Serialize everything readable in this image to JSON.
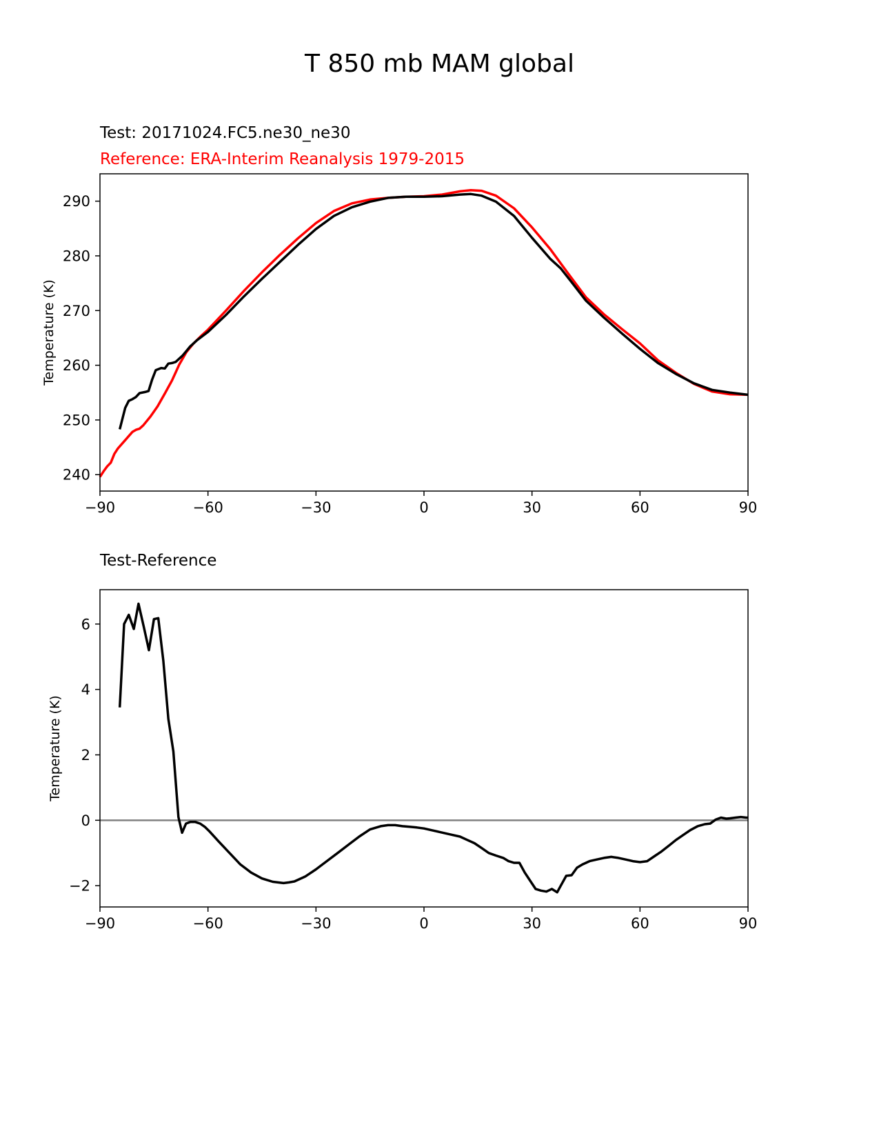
{
  "figure": {
    "title": "T 850 mb MAM global"
  },
  "chart_data": [
    {
      "type": "line",
      "test_label": "Test: 20171024.FC5.ne30_ne30",
      "reference_label": "Reference: ERA-Interim Reanalysis 1979-2015",
      "xlabel": "",
      "ylabel": "Temperature (K)",
      "xlim": [
        -90,
        90
      ],
      "ylim": [
        237,
        295
      ],
      "xticks": [
        -90,
        -60,
        -30,
        0,
        30,
        60,
        90
      ],
      "xtick_labels": [
        "−90",
        "−60",
        "−30",
        "0",
        "30",
        "60",
        "90"
      ],
      "yticks": [
        240,
        250,
        260,
        270,
        280,
        290
      ],
      "ytick_labels": [
        "240",
        "250",
        "260",
        "270",
        "280",
        "290"
      ],
      "series": [
        {
          "name": "Reference",
          "color": "#ff0000",
          "x": [
            -90,
            -89,
            -88,
            -87,
            -86,
            -85,
            -83,
            -81,
            -80,
            -79,
            -78,
            -76,
            -74,
            -72,
            -70,
            -68,
            -66,
            -64,
            -62,
            -60,
            -55,
            -50,
            -45,
            -40,
            -35,
            -30,
            -25,
            -20,
            -15,
            -10,
            -5,
            0,
            5,
            10,
            13,
            16,
            20,
            25,
            30,
            35,
            40,
            45,
            50,
            55,
            60,
            65,
            70,
            75,
            80,
            85,
            90
          ],
          "y": [
            239.6,
            240.6,
            241.5,
            242.2,
            243.8,
            244.8,
            246.3,
            247.8,
            248.2,
            248.4,
            249.0,
            250.6,
            252.5,
            254.8,
            257.2,
            260.1,
            262.4,
            264.0,
            265.3,
            266.5,
            270.0,
            273.6,
            277.0,
            280.2,
            283.2,
            286.0,
            288.2,
            289.6,
            290.3,
            290.6,
            290.8,
            290.9,
            291.2,
            291.8,
            292.0,
            291.9,
            291.0,
            288.7,
            285.2,
            281.3,
            276.8,
            272.4,
            269.3,
            266.6,
            264.0,
            260.9,
            258.6,
            256.6,
            255.2,
            254.7,
            254.6
          ]
        },
        {
          "name": "Test",
          "color": "#000000",
          "x": [
            -84.5,
            -83,
            -82,
            -81,
            -80,
            -79,
            -77.5,
            -76.5,
            -75.5,
            -74.5,
            -73,
            -72,
            -71,
            -70,
            -69,
            -67,
            -65,
            -63,
            -60,
            -55,
            -50,
            -45,
            -40,
            -35,
            -30,
            -25,
            -20,
            -15,
            -10,
            -5,
            0,
            5,
            10,
            13,
            16,
            20,
            25,
            30,
            35,
            38,
            41,
            45,
            50,
            55,
            60,
            65,
            70,
            75,
            80,
            85,
            90
          ],
          "y": [
            248.3,
            252.2,
            253.5,
            253.8,
            254.2,
            254.9,
            255.1,
            255.3,
            257.4,
            259.1,
            259.5,
            259.4,
            260.3,
            260.4,
            260.6,
            261.8,
            263.4,
            264.6,
            266.1,
            269.2,
            272.6,
            275.8,
            278.9,
            282.0,
            284.9,
            287.3,
            288.9,
            289.9,
            290.6,
            290.8,
            290.8,
            290.9,
            291.2,
            291.3,
            291.0,
            289.9,
            287.3,
            283.3,
            279.5,
            277.7,
            275.2,
            271.8,
            268.7,
            265.8,
            263.0,
            260.4,
            258.4,
            256.7,
            255.5,
            255.0,
            254.6
          ]
        }
      ]
    },
    {
      "type": "line",
      "subtitle": "Test-Reference",
      "xlabel": "",
      "ylabel": "Temperature (K)",
      "xlim": [
        -90,
        90
      ],
      "ylim": [
        -2.65,
        7.05
      ],
      "xticks": [
        -90,
        -60,
        -30,
        0,
        30,
        60,
        90
      ],
      "xtick_labels": [
        "−90",
        "−60",
        "−30",
        "0",
        "30",
        "60",
        "90"
      ],
      "yticks": [
        -2,
        0,
        2,
        4,
        6
      ],
      "ytick_labels": [
        "−2",
        "0",
        "2",
        "4",
        "6"
      ],
      "zero_line": {
        "y": 0,
        "color": "#808080"
      },
      "series": [
        {
          "name": "Test-Reference",
          "color": "#000000",
          "x": [
            -84.5,
            -83.3,
            -82,
            -80.6,
            -79.3,
            -77.8,
            -76.4,
            -75,
            -73.8,
            -72.4,
            -71,
            -69.6,
            -68.2,
            -67.2,
            -66.1,
            -64.9,
            -63.6,
            -62.2,
            -60.9,
            -59.5,
            -57,
            -54,
            -51,
            -48,
            -45,
            -42,
            -39,
            -37.5,
            -36,
            -33,
            -30,
            -27,
            -24,
            -21,
            -18,
            -15,
            -12,
            -10,
            -8,
            -6,
            -4,
            -2,
            0,
            2,
            4,
            6,
            8,
            10,
            12,
            14,
            16,
            18,
            20,
            22,
            23.5,
            25,
            26.5,
            28,
            29.5,
            31,
            32.5,
            34,
            35.5,
            37,
            38,
            39.5,
            41,
            42.5,
            44,
            46,
            48,
            50,
            52,
            54,
            56,
            58,
            60,
            62,
            64,
            66,
            68,
            70,
            72,
            74,
            76,
            78,
            79.5,
            81,
            82.5,
            84,
            85,
            86.5,
            88,
            89.5,
            90
          ],
          "y": [
            3.45,
            6.0,
            6.28,
            5.85,
            6.62,
            5.9,
            5.2,
            6.15,
            6.18,
            4.88,
            3.1,
            2.1,
            0.1,
            -0.38,
            -0.1,
            -0.05,
            -0.05,
            -0.1,
            -0.2,
            -0.35,
            -0.65,
            -1.0,
            -1.35,
            -1.6,
            -1.78,
            -1.88,
            -1.92,
            -1.9,
            -1.87,
            -1.72,
            -1.5,
            -1.25,
            -1.0,
            -0.75,
            -0.5,
            -0.28,
            -0.18,
            -0.15,
            -0.15,
            -0.18,
            -0.2,
            -0.22,
            -0.25,
            -0.3,
            -0.35,
            -0.4,
            -0.45,
            -0.5,
            -0.6,
            -0.7,
            -0.85,
            -1.0,
            -1.08,
            -1.15,
            -1.25,
            -1.3,
            -1.3,
            -1.6,
            -1.85,
            -2.1,
            -2.15,
            -2.18,
            -2.1,
            -2.2,
            -2.0,
            -1.7,
            -1.68,
            -1.45,
            -1.35,
            -1.25,
            -1.2,
            -1.15,
            -1.12,
            -1.15,
            -1.2,
            -1.25,
            -1.28,
            -1.25,
            -1.1,
            -0.95,
            -0.78,
            -0.6,
            -0.45,
            -0.3,
            -0.18,
            -0.12,
            -0.1,
            0.02,
            0.08,
            0.05,
            0.06,
            0.08,
            0.1,
            0.08,
            0.08
          ]
        }
      ]
    }
  ]
}
